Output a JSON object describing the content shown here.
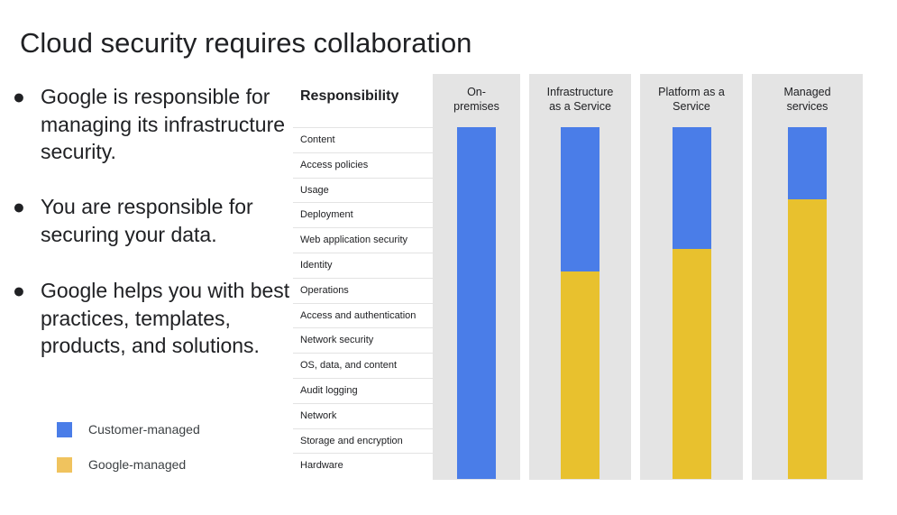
{
  "slide": {
    "title": "Cloud security requires collaboration",
    "bullets": [
      "Google is responsible for managing its infrastructure security.",
      "You are responsible for securing your data.",
      "Google helps you with best practices, templates, products, and solutions."
    ],
    "bullet_glyph": "●"
  },
  "legend": [
    {
      "label": "Customer-managed",
      "color": "#4a7de8"
    },
    {
      "label": "Google-managed",
      "color": "#f0c35e"
    }
  ],
  "table": {
    "header": "Responsibility",
    "rows": [
      "Content",
      "Access policies",
      "Usage",
      "Deployment",
      "Web application security",
      "Identity",
      "Operations",
      "Access and authentication",
      "Network security",
      "OS, data, and content",
      "Audit logging",
      "Network",
      "Storage and encryption",
      "Hardware"
    ],
    "columns": [
      {
        "label_lines": [
          "On-",
          "premises"
        ],
        "customer_managed_fraction": 1.0
      },
      {
        "label_lines": [
          "Infrastructure",
          "as a Service"
        ],
        "customer_managed_fraction": 0.41
      },
      {
        "label_lines": [
          "Platform as a",
          "Service"
        ],
        "customer_managed_fraction": 0.345
      },
      {
        "label_lines": [
          "Managed",
          "services"
        ],
        "customer_managed_fraction": 0.205
      }
    ],
    "colors": {
      "customer": "#4a7de8",
      "google": "#e8c12e",
      "column_bg": "#e4e4e4"
    }
  }
}
